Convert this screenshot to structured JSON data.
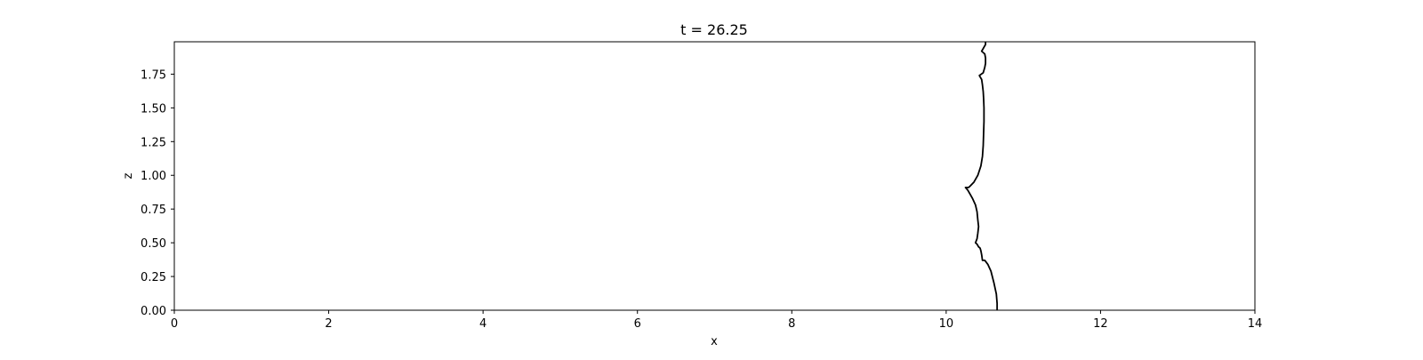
{
  "chart_data": {
    "type": "line",
    "title": "t = 26.25",
    "xlabel": "x",
    "ylabel": "z",
    "xlim": [
      0,
      14
    ],
    "ylim": [
      0,
      1.99
    ],
    "xticks": [
      0,
      2,
      4,
      6,
      8,
      10,
      12,
      14
    ],
    "xtick_labels": [
      "0",
      "2",
      "4",
      "6",
      "8",
      "10",
      "12",
      "14"
    ],
    "yticks": [
      0,
      0.25,
      0.5,
      0.75,
      1.0,
      1.25,
      1.5,
      1.75
    ],
    "ytick_labels": [
      "0.00",
      "0.25",
      "0.50",
      "0.75",
      "1.00",
      "1.25",
      "1.50",
      "1.75"
    ],
    "grid": false,
    "line_color": "#000000",
    "series": [
      {
        "x": [
          10.66,
          10.66,
          10.65,
          10.62,
          10.58,
          10.54,
          10.5,
          10.47,
          10.46,
          10.45,
          10.44,
          10.42,
          10.4,
          10.38,
          10.4,
          10.41,
          10.42,
          10.41,
          10.4,
          10.38,
          10.34,
          10.31,
          10.28,
          10.25,
          10.29,
          10.31,
          10.36,
          10.41,
          10.45,
          10.47,
          10.48,
          10.485,
          10.49,
          10.49,
          10.485,
          10.48,
          10.47,
          10.46,
          10.43,
          10.48,
          10.5,
          10.51,
          10.51,
          10.5,
          10.46,
          10.49,
          10.51,
          10.51
        ],
        "y": [
          0.0,
          0.05,
          0.12,
          0.2,
          0.29,
          0.34,
          0.37,
          0.37,
          0.41,
          0.44,
          0.46,
          0.47,
          0.49,
          0.5,
          0.53,
          0.57,
          0.62,
          0.67,
          0.73,
          0.78,
          0.83,
          0.86,
          0.89,
          0.91,
          0.91,
          0.92,
          0.95,
          1.0,
          1.07,
          1.14,
          1.22,
          1.31,
          1.4,
          1.5,
          1.57,
          1.62,
          1.67,
          1.71,
          1.74,
          1.76,
          1.8,
          1.83,
          1.87,
          1.9,
          1.92,
          1.95,
          1.97,
          1.99
        ]
      }
    ]
  }
}
